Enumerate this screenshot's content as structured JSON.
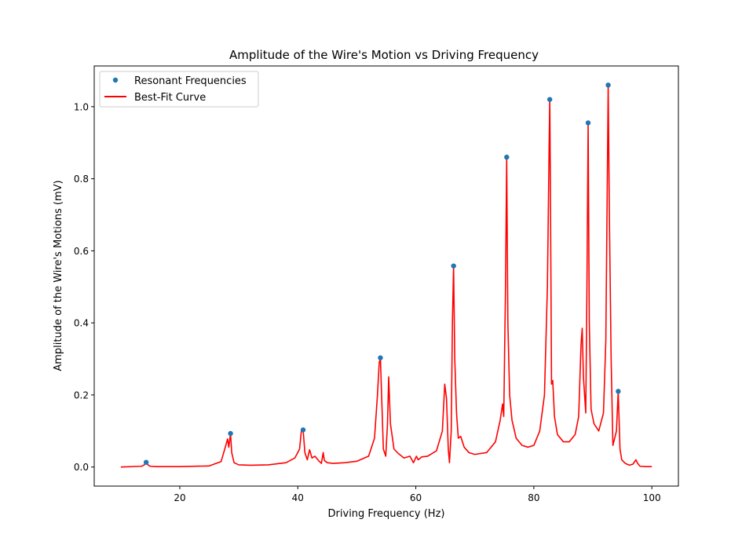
{
  "chart_data": {
    "type": "line",
    "title": "Amplitude of the Wire's Motion vs Driving Frequency",
    "xlabel": "Driving Frequency (Hz)",
    "ylabel": "Amplitude of the Wire's Motions (mV)",
    "xlim": [
      5.5,
      104.5
    ],
    "ylim": [
      -0.053,
      1.113
    ],
    "xticks": [
      20,
      40,
      60,
      80,
      100
    ],
    "xtick_labels": [
      "20",
      "40",
      "60",
      "80",
      "100"
    ],
    "yticks": [
      0.0,
      0.2,
      0.4,
      0.6,
      0.8,
      1.0
    ],
    "ytick_labels": [
      "0.0",
      "0.2",
      "0.4",
      "0.6",
      "0.8",
      "1.0"
    ],
    "grid": false,
    "legend_position": "upper-left",
    "colors": {
      "curve": "#ff0000",
      "points": "#1f77b4"
    },
    "series": [
      {
        "name": "Resonant Frequencies",
        "kind": "scatter",
        "x": [
          14.3,
          28.6,
          40.9,
          54.0,
          66.4,
          75.4,
          82.7,
          89.2,
          92.6,
          94.3
        ],
        "y": [
          0.013,
          0.093,
          0.103,
          0.303,
          0.558,
          0.86,
          1.02,
          0.955,
          1.06,
          0.21
        ]
      },
      {
        "name": "Best-Fit Curve",
        "kind": "line",
        "x": [
          10,
          13.5,
          14.0,
          14.3,
          14.6,
          15.0,
          16,
          20,
          25,
          27.0,
          27.8,
          28.1,
          28.3,
          28.6,
          28.8,
          29.2,
          30,
          32,
          35,
          38,
          39.5,
          40.3,
          40.6,
          40.9,
          41.2,
          41.6,
          42.0,
          42.4,
          42.9,
          43.5,
          44.0,
          44.3,
          44.5,
          45.0,
          46,
          48,
          50,
          52,
          53.0,
          53.5,
          53.8,
          54.0,
          54.2,
          54.5,
          54.9,
          55.2,
          55.4,
          55.7,
          56.3,
          57,
          58,
          59.0,
          59.6,
          60.1,
          60.4,
          61,
          62,
          63.5,
          64.5,
          64.9,
          65.2,
          65.5,
          65.7,
          66.0,
          66.2,
          66.4,
          66.6,
          66.9,
          67.2,
          67.6,
          68.2,
          69,
          70,
          72,
          73.5,
          74.3,
          74.7,
          74.9,
          75.2,
          75.4,
          75.6,
          75.9,
          76.3,
          77,
          78,
          79,
          80,
          81,
          81.8,
          82.3,
          82.6,
          82.7,
          82.8,
          83.0,
          83.2,
          83.5,
          84,
          85,
          86,
          87,
          87.6,
          88.0,
          88.2,
          88.4,
          88.8,
          89.0,
          89.2,
          89.4,
          89.7,
          90.2,
          91,
          91.8,
          92.2,
          92.4,
          92.6,
          92.8,
          93.1,
          93.4,
          93.7,
          94.0,
          94.3,
          94.6,
          94.9,
          95.5,
          96.2,
          96.8,
          97.3,
          97.6,
          98.0,
          99,
          100
        ],
        "y": [
          0.0,
          0.002,
          0.006,
          0.013,
          0.006,
          0.002,
          0.001,
          0.001,
          0.003,
          0.015,
          0.06,
          0.078,
          0.055,
          0.093,
          0.04,
          0.012,
          0.006,
          0.005,
          0.006,
          0.012,
          0.025,
          0.05,
          0.1,
          0.103,
          0.04,
          0.02,
          0.048,
          0.025,
          0.03,
          0.018,
          0.01,
          0.04,
          0.018,
          0.012,
          0.01,
          0.012,
          0.016,
          0.03,
          0.08,
          0.2,
          0.29,
          0.303,
          0.2,
          0.05,
          0.03,
          0.12,
          0.25,
          0.12,
          0.05,
          0.038,
          0.025,
          0.03,
          0.012,
          0.03,
          0.02,
          0.028,
          0.03,
          0.045,
          0.1,
          0.23,
          0.19,
          0.05,
          0.012,
          0.1,
          0.4,
          0.558,
          0.3,
          0.15,
          0.08,
          0.085,
          0.055,
          0.04,
          0.035,
          0.04,
          0.07,
          0.13,
          0.175,
          0.14,
          0.5,
          0.86,
          0.4,
          0.2,
          0.13,
          0.08,
          0.06,
          0.055,
          0.06,
          0.1,
          0.2,
          0.5,
          0.9,
          1.02,
          0.8,
          0.23,
          0.24,
          0.14,
          0.09,
          0.07,
          0.07,
          0.09,
          0.14,
          0.34,
          0.385,
          0.25,
          0.15,
          0.5,
          0.955,
          0.4,
          0.16,
          0.12,
          0.1,
          0.15,
          0.35,
          0.7,
          1.06,
          0.7,
          0.3,
          0.06,
          0.08,
          0.1,
          0.21,
          0.05,
          0.02,
          0.01,
          0.005,
          0.008,
          0.02,
          0.01,
          0.002,
          0.001,
          0.001
        ]
      }
    ]
  }
}
